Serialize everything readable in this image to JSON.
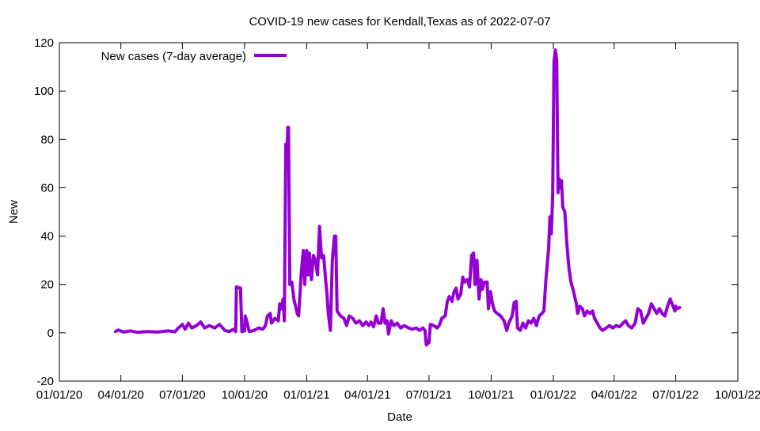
{
  "chart_data": {
    "type": "line",
    "title": "COVID-19 new cases for Kendall,Texas as of 2022-07-07",
    "xlabel": "Date",
    "ylabel": "New",
    "x_range": [
      "2020-01-01",
      "2022-10-01"
    ],
    "ylim": [
      -20,
      120
    ],
    "y_ticks": [
      -20,
      0,
      20,
      40,
      60,
      80,
      100,
      120
    ],
    "x_ticks": [
      {
        "date": "2020-01-01",
        "label": "01/01/20"
      },
      {
        "date": "2020-04-01",
        "label": "04/01/20"
      },
      {
        "date": "2020-07-01",
        "label": "07/01/20"
      },
      {
        "date": "2020-10-01",
        "label": "10/01/20"
      },
      {
        "date": "2021-01-01",
        "label": "01/01/21"
      },
      {
        "date": "2021-04-01",
        "label": "04/01/21"
      },
      {
        "date": "2021-07-01",
        "label": "07/01/21"
      },
      {
        "date": "2021-10-01",
        "label": "10/01/21"
      },
      {
        "date": "2022-01-01",
        "label": "01/01/22"
      },
      {
        "date": "2022-04-01",
        "label": "04/01/22"
      },
      {
        "date": "2022-07-01",
        "label": "07/01/22"
      },
      {
        "date": "2022-10-01",
        "label": "10/01/22"
      }
    ],
    "grid": false,
    "legend_position": "top-left",
    "series": [
      {
        "name": "New cases (7-day average)",
        "color": "#9400d3",
        "points": [
          [
            "2020-03-24",
            0.5
          ],
          [
            "2020-03-28",
            1.2
          ],
          [
            "2020-04-05",
            0.3
          ],
          [
            "2020-04-15",
            0.8
          ],
          [
            "2020-04-25",
            0.2
          ],
          [
            "2020-05-10",
            0.5
          ],
          [
            "2020-05-25",
            0.3
          ],
          [
            "2020-06-10",
            0.8
          ],
          [
            "2020-06-20",
            0.4
          ],
          [
            "2020-06-25",
            2.0
          ],
          [
            "2020-07-01",
            3.5
          ],
          [
            "2020-07-05",
            1.5
          ],
          [
            "2020-07-10",
            4.0
          ],
          [
            "2020-07-15",
            2.0
          ],
          [
            "2020-07-22",
            3.0
          ],
          [
            "2020-07-28",
            4.5
          ],
          [
            "2020-08-03",
            2.0
          ],
          [
            "2020-08-10",
            3.0
          ],
          [
            "2020-08-18",
            2.0
          ],
          [
            "2020-08-25",
            3.5
          ],
          [
            "2020-09-02",
            1.0
          ],
          [
            "2020-09-08",
            0.5
          ],
          [
            "2020-09-15",
            1.5
          ],
          [
            "2020-09-18",
            0.5
          ],
          [
            "2020-09-19",
            19.0
          ],
          [
            "2020-09-25",
            18.5
          ],
          [
            "2020-09-27",
            0.5
          ],
          [
            "2020-10-01",
            0.8
          ],
          [
            "2020-10-02",
            7.0
          ],
          [
            "2020-10-05",
            4.0
          ],
          [
            "2020-10-08",
            0.5
          ],
          [
            "2020-10-15",
            1.0
          ],
          [
            "2020-10-22",
            2.0
          ],
          [
            "2020-10-28",
            1.5
          ],
          [
            "2020-11-01",
            3.0
          ],
          [
            "2020-11-04",
            7.0
          ],
          [
            "2020-11-08",
            8.0
          ],
          [
            "2020-11-10",
            4.0
          ],
          [
            "2020-11-15",
            6.0
          ],
          [
            "2020-11-20",
            5.0
          ],
          [
            "2020-11-22",
            12.0
          ],
          [
            "2020-11-25",
            10.0
          ],
          [
            "2020-11-27",
            14.0
          ],
          [
            "2020-11-29",
            5.0
          ],
          [
            "2020-12-01",
            78.0
          ],
          [
            "2020-12-03",
            75.0
          ],
          [
            "2020-12-04",
            85.0
          ],
          [
            "2020-12-05",
            85.0
          ],
          [
            "2020-12-07",
            20.0
          ],
          [
            "2020-12-10",
            21.0
          ],
          [
            "2020-12-13",
            14.0
          ],
          [
            "2020-12-18",
            8.0
          ],
          [
            "2020-12-20",
            7.0
          ],
          [
            "2020-12-24",
            25.0
          ],
          [
            "2020-12-27",
            34.0
          ],
          [
            "2020-12-29",
            20.0
          ],
          [
            "2021-01-01",
            34.0
          ],
          [
            "2021-01-03",
            24.0
          ],
          [
            "2021-01-05",
            33.0
          ],
          [
            "2021-01-08",
            22.0
          ],
          [
            "2021-01-11",
            32.0
          ],
          [
            "2021-01-14",
            30.0
          ],
          [
            "2021-01-17",
            24.0
          ],
          [
            "2021-01-20",
            44.0
          ],
          [
            "2021-01-23",
            31.0
          ],
          [
            "2021-01-26",
            32.0
          ],
          [
            "2021-01-29",
            22.0
          ],
          [
            "2021-01-31",
            16.0
          ],
          [
            "2021-02-02",
            8.0
          ],
          [
            "2021-02-05",
            1.0
          ],
          [
            "2021-02-08",
            30.0
          ],
          [
            "2021-02-11",
            40.0
          ],
          [
            "2021-02-13",
            40.0
          ],
          [
            "2021-02-15",
            9.0
          ],
          [
            "2021-02-20",
            7.0
          ],
          [
            "2021-02-25",
            6.0
          ],
          [
            "2021-03-01",
            3.0
          ],
          [
            "2021-03-05",
            7.0
          ],
          [
            "2021-03-10",
            6.0
          ],
          [
            "2021-03-15",
            4.0
          ],
          [
            "2021-03-20",
            5.0
          ],
          [
            "2021-03-25",
            3.0
          ],
          [
            "2021-03-30",
            4.5
          ],
          [
            "2021-04-03",
            3.0
          ],
          [
            "2021-04-06",
            4.5
          ],
          [
            "2021-04-10",
            2.5
          ],
          [
            "2021-04-14",
            7.0
          ],
          [
            "2021-04-17",
            4.0
          ],
          [
            "2021-04-21",
            4.0
          ],
          [
            "2021-04-24",
            10.0
          ],
          [
            "2021-04-27",
            4.0
          ],
          [
            "2021-04-30",
            5.0
          ],
          [
            "2021-05-02",
            -0.5
          ],
          [
            "2021-05-06",
            5.0
          ],
          [
            "2021-05-10",
            3.0
          ],
          [
            "2021-05-15",
            4.0
          ],
          [
            "2021-05-20",
            2.0
          ],
          [
            "2021-05-25",
            3.0
          ],
          [
            "2021-06-01",
            2.0
          ],
          [
            "2021-06-06",
            1.5
          ],
          [
            "2021-06-12",
            2.0
          ],
          [
            "2021-06-17",
            1.0
          ],
          [
            "2021-06-22",
            2.0
          ],
          [
            "2021-06-25",
            1.0
          ],
          [
            "2021-06-27",
            -5.0
          ],
          [
            "2021-07-01",
            -4.0
          ],
          [
            "2021-07-03",
            3.5
          ],
          [
            "2021-07-08",
            3.0
          ],
          [
            "2021-07-13",
            2.0
          ],
          [
            "2021-07-16",
            3.0
          ],
          [
            "2021-07-20",
            6.0
          ],
          [
            "2021-07-25",
            7.0
          ],
          [
            "2021-07-28",
            13.0
          ],
          [
            "2021-07-31",
            15.0
          ],
          [
            "2021-08-04",
            13.0
          ],
          [
            "2021-08-07",
            17.0
          ],
          [
            "2021-08-10",
            18.5
          ],
          [
            "2021-08-13",
            14.0
          ],
          [
            "2021-08-17",
            16.0
          ],
          [
            "2021-08-20",
            23.0
          ],
          [
            "2021-08-23",
            21.0
          ],
          [
            "2021-08-27",
            22.0
          ],
          [
            "2021-08-30",
            19.0
          ],
          [
            "2021-09-02",
            32.0
          ],
          [
            "2021-09-05",
            33.0
          ],
          [
            "2021-09-07",
            20.0
          ],
          [
            "2021-09-10",
            30.0
          ],
          [
            "2021-09-13",
            14.0
          ],
          [
            "2021-09-16",
            22.0
          ],
          [
            "2021-09-18",
            18.0
          ],
          [
            "2021-09-21",
            21.0
          ],
          [
            "2021-09-25",
            21.0
          ],
          [
            "2021-09-27",
            10.0
          ],
          [
            "2021-09-30",
            17.0
          ],
          [
            "2021-10-03",
            12.0
          ],
          [
            "2021-10-06",
            9.0
          ],
          [
            "2021-10-10",
            8.0
          ],
          [
            "2021-10-15",
            7.0
          ],
          [
            "2021-10-20",
            5.0
          ],
          [
            "2021-10-24",
            1.0
          ],
          [
            "2021-10-27",
            4.0
          ],
          [
            "2021-11-01",
            7.0
          ],
          [
            "2021-11-04",
            12.5
          ],
          [
            "2021-11-07",
            13.0
          ],
          [
            "2021-11-09",
            2.0
          ],
          [
            "2021-11-13",
            1.0
          ],
          [
            "2021-11-17",
            4.0
          ],
          [
            "2021-11-21",
            2.0
          ],
          [
            "2021-11-25",
            5.0
          ],
          [
            "2021-11-29",
            4.0
          ],
          [
            "2021-12-03",
            6.0
          ],
          [
            "2021-12-07",
            3.0
          ],
          [
            "2021-12-11",
            7.0
          ],
          [
            "2021-12-15",
            8.0
          ],
          [
            "2021-12-18",
            9.0
          ],
          [
            "2021-12-21",
            22.0
          ],
          [
            "2021-12-25",
            35.0
          ],
          [
            "2021-12-27",
            48.0
          ],
          [
            "2021-12-29",
            41.0
          ],
          [
            "2021-12-31",
            56.0
          ],
          [
            "2022-01-02",
            112.0
          ],
          [
            "2022-01-04",
            117.0
          ],
          [
            "2022-01-06",
            113.0
          ],
          [
            "2022-01-08",
            58.0
          ],
          [
            "2022-01-09",
            64.0
          ],
          [
            "2022-01-11",
            60.0
          ],
          [
            "2022-01-13",
            63.0
          ],
          [
            "2022-01-15",
            52.0
          ],
          [
            "2022-01-18",
            50.0
          ],
          [
            "2022-01-21",
            37.0
          ],
          [
            "2022-01-24",
            27.0
          ],
          [
            "2022-01-27",
            21.0
          ],
          [
            "2022-01-31",
            17.0
          ],
          [
            "2022-02-04",
            12.0
          ],
          [
            "2022-02-06",
            8.0
          ],
          [
            "2022-02-09",
            11.0
          ],
          [
            "2022-02-13",
            10.0
          ],
          [
            "2022-02-16",
            7.0
          ],
          [
            "2022-02-20",
            9.0
          ],
          [
            "2022-02-24",
            8.0
          ],
          [
            "2022-02-28",
            9.0
          ],
          [
            "2022-03-03",
            6.0
          ],
          [
            "2022-03-07",
            4.0
          ],
          [
            "2022-03-11",
            2.0
          ],
          [
            "2022-03-15",
            1.0
          ],
          [
            "2022-03-20",
            2.0
          ],
          [
            "2022-03-25",
            3.0
          ],
          [
            "2022-03-30",
            2.0
          ],
          [
            "2022-04-04",
            3.0
          ],
          [
            "2022-04-09",
            2.5
          ],
          [
            "2022-04-14",
            4.0
          ],
          [
            "2022-04-18",
            5.0
          ],
          [
            "2022-04-22",
            3.0
          ],
          [
            "2022-04-27",
            2.0
          ],
          [
            "2022-05-02",
            4.0
          ],
          [
            "2022-05-06",
            10.0
          ],
          [
            "2022-05-10",
            9.0
          ],
          [
            "2022-05-14",
            4.0
          ],
          [
            "2022-05-18",
            6.0
          ],
          [
            "2022-05-22",
            8.0
          ],
          [
            "2022-05-26",
            12.0
          ],
          [
            "2022-05-30",
            10.0
          ],
          [
            "2022-06-03",
            8.0
          ],
          [
            "2022-06-07",
            10.0
          ],
          [
            "2022-06-11",
            8.0
          ],
          [
            "2022-06-15",
            7.0
          ],
          [
            "2022-06-19",
            11.0
          ],
          [
            "2022-06-23",
            14.0
          ],
          [
            "2022-06-27",
            11.0
          ],
          [
            "2022-06-30",
            9.0
          ],
          [
            "2022-07-01",
            11.0
          ],
          [
            "2022-07-03",
            10.0
          ],
          [
            "2022-07-07",
            10.5
          ]
        ]
      }
    ]
  }
}
